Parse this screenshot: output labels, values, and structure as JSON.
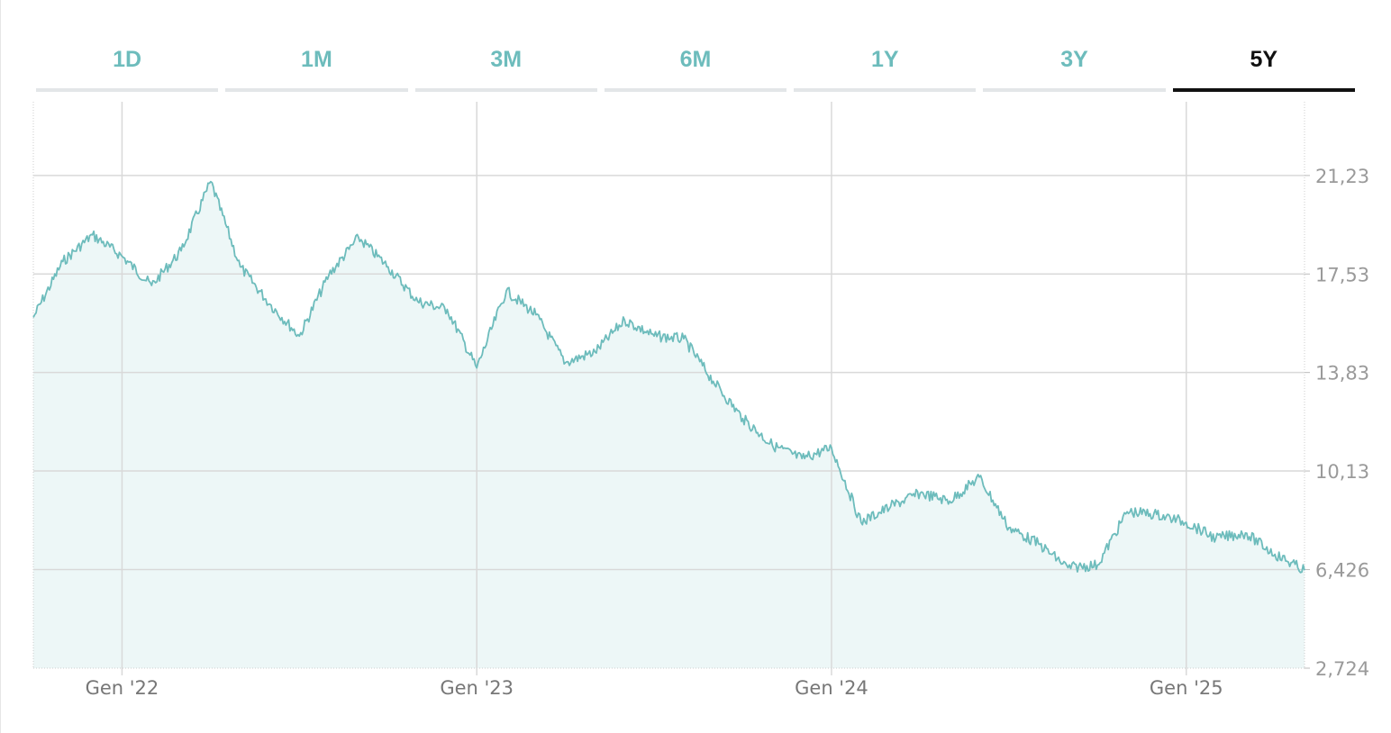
{
  "tabs": [
    {
      "label": "1D",
      "active": false
    },
    {
      "label": "1M",
      "active": false
    },
    {
      "label": "3M",
      "active": false
    },
    {
      "label": "6M",
      "active": false
    },
    {
      "label": "1Y",
      "active": false
    },
    {
      "label": "3Y",
      "active": false
    },
    {
      "label": "5Y",
      "active": true
    }
  ],
  "colors": {
    "line": "#6dbcbc",
    "fill": "#edf7f7",
    "tab_inactive": "#6dbcbc",
    "tab_active": "#111111",
    "grid": "#d9d9d9",
    "tick_text": "#9a9a9a"
  },
  "chart_data": {
    "type": "area",
    "title": "",
    "xlabel": "",
    "ylabel": "",
    "x_ticks": [
      "Gen '22",
      "Gen '23",
      "Gen '24",
      "Gen '25"
    ],
    "y_ticks": [
      "21,23",
      "17,53",
      "13,83",
      "10,13",
      "6,426",
      "2,724"
    ],
    "y_tick_values": [
      21.23,
      17.53,
      13.83,
      10.13,
      6.426,
      2.724
    ],
    "ylim": [
      2.724,
      24.0
    ],
    "xlim": [
      "2021-10",
      "2025-05"
    ],
    "grid": true,
    "legend": "none",
    "series": [
      {
        "x": [
          "2021-10",
          "2021-11",
          "2021-12",
          "2022-01",
          "2022-02",
          "2022-03",
          "2022-04",
          "2022-05",
          "2022-06",
          "2022-07",
          "2022-08",
          "2022-09",
          "2022-10",
          "2022-11",
          "2022-12",
          "2023-01",
          "2023-02",
          "2023-03",
          "2023-04",
          "2023-05",
          "2023-06",
          "2023-07",
          "2023-08",
          "2023-09",
          "2023-10",
          "2023-11",
          "2023-12",
          "2024-01",
          "2024-02",
          "2024-03",
          "2024-04",
          "2024-05",
          "2024-06",
          "2024-07",
          "2024-08",
          "2024-09",
          "2024-10",
          "2024-11",
          "2024-12",
          "2025-01",
          "2025-02",
          "2025-03",
          "2025-04",
          "2025-05"
        ],
        "values": [
          15.9,
          18.0,
          19.0,
          18.2,
          17.1,
          18.4,
          21.0,
          17.8,
          16.4,
          15.2,
          17.5,
          18.9,
          17.8,
          16.5,
          16.2,
          14.0,
          16.9,
          16.0,
          14.2,
          14.6,
          15.8,
          15.2,
          15.1,
          13.5,
          12.1,
          11.1,
          10.6,
          11.0,
          8.2,
          8.8,
          9.3,
          9.0,
          9.9,
          8.0,
          7.4,
          6.5,
          6.6,
          8.6,
          8.5,
          8.2,
          7.6,
          7.8,
          7.0,
          6.4
        ]
      }
    ]
  }
}
